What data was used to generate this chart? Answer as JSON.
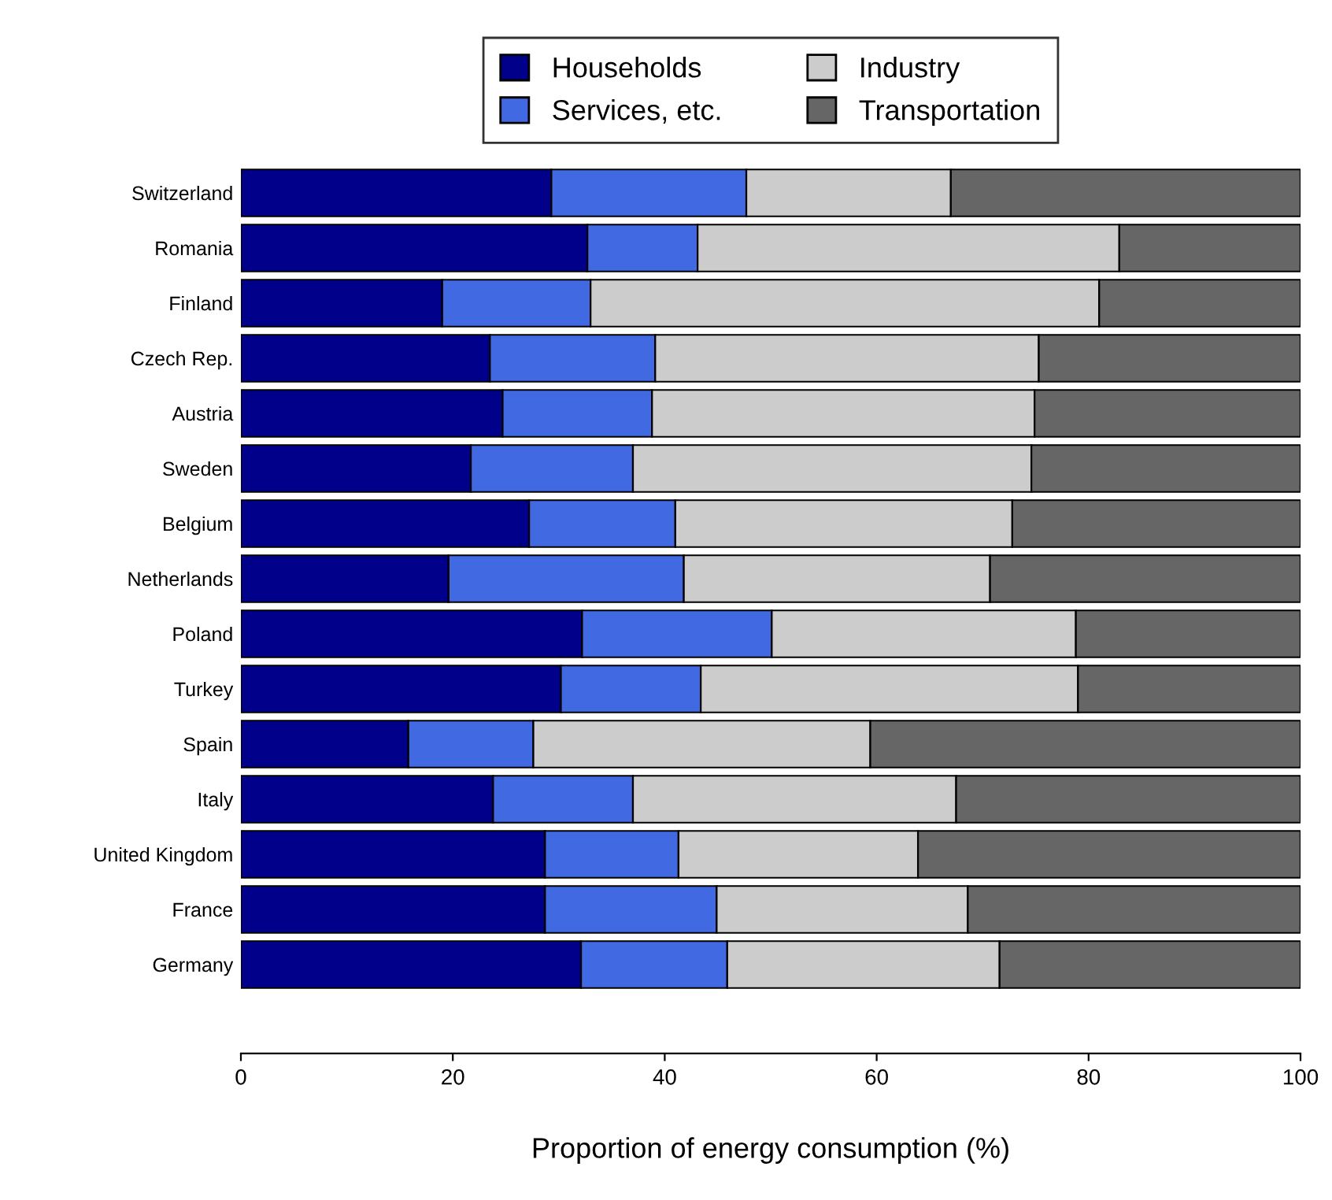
{
  "chart_data": {
    "type": "bar",
    "orientation": "horizontal",
    "stacked": true,
    "xlabel": "Proportion of energy consumption (%)",
    "categories": [
      "Switzerland",
      "Romania",
      "Finland",
      "Czech Rep.",
      "Austria",
      "Sweden",
      "Belgium",
      "Netherlands",
      "Poland",
      "Turkey",
      "Spain",
      "Italy",
      "United Kingdom",
      "France",
      "Germany"
    ],
    "series": [
      {
        "name": "Households",
        "color": "#00008b",
        "values": [
          29.3,
          32.7,
          19.0,
          23.5,
          24.7,
          21.7,
          27.2,
          19.6,
          32.2,
          30.2,
          15.8,
          23.8,
          28.7,
          28.7,
          32.1
        ]
      },
      {
        "name": "Services, etc.",
        "color": "#4169e1",
        "values": [
          18.4,
          10.4,
          14.0,
          15.6,
          14.1,
          15.3,
          13.8,
          22.2,
          17.9,
          13.2,
          11.8,
          13.2,
          12.6,
          16.2,
          13.8
        ]
      },
      {
        "name": "Industry",
        "color": "#cccccc",
        "values": [
          19.3,
          39.8,
          48.0,
          36.2,
          36.1,
          37.6,
          31.8,
          28.9,
          28.7,
          35.6,
          31.8,
          30.5,
          22.6,
          23.7,
          25.7
        ]
      },
      {
        "name": "Transportation",
        "color": "#666666",
        "values": [
          33.0,
          17.1,
          19.0,
          24.7,
          25.1,
          25.4,
          27.2,
          29.3,
          21.2,
          21.0,
          40.6,
          32.5,
          36.1,
          31.4,
          28.4
        ]
      }
    ],
    "xlim": [
      0,
      100
    ],
    "xticks": [
      0,
      20,
      40,
      60,
      80,
      100
    ],
    "grid": false,
    "legend": "top"
  }
}
